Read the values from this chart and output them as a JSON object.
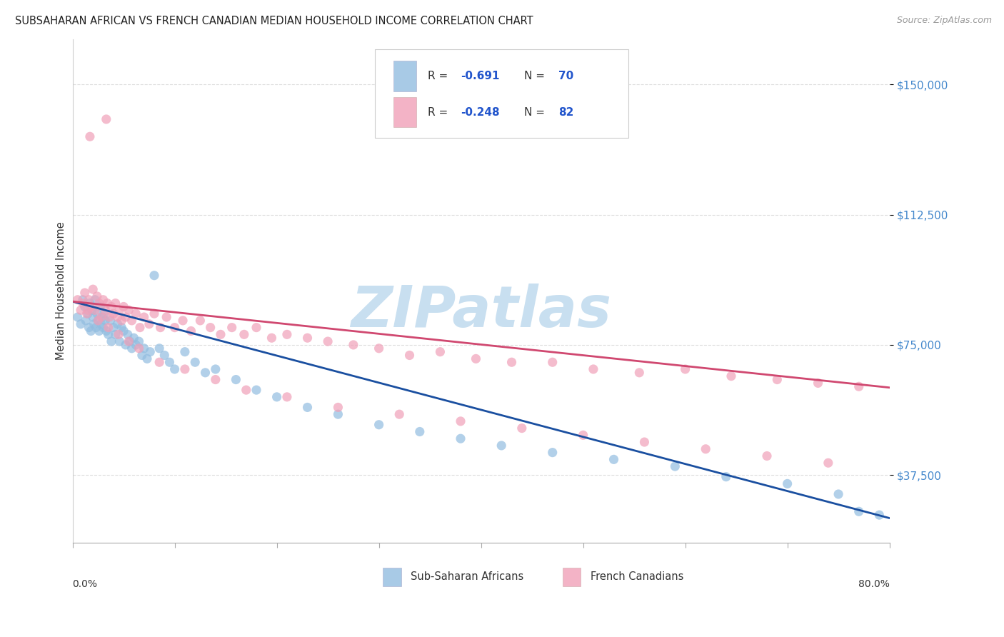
{
  "title": "SUBSAHARAN AFRICAN VS FRENCH CANADIAN MEDIAN HOUSEHOLD INCOME CORRELATION CHART",
  "source": "Source: ZipAtlas.com",
  "ylabel": "Median Household Income",
  "ytick_vals": [
    37500,
    75000,
    112500,
    150000
  ],
  "ytick_labels": [
    "$37,500",
    "$75,000",
    "$112,500",
    "$150,000"
  ],
  "ymin": 18000,
  "ymax": 163000,
  "xmin": 0.0,
  "xmax": 0.8,
  "watermark": "ZIPatlas",
  "watermark_color": "#c8dff0",
  "blue_color": "#92bde0",
  "pink_color": "#f0a0b8",
  "blue_line_color": "#1a4fa0",
  "pink_line_color": "#d04870",
  "background_color": "#ffffff",
  "grid_color": "#dddddd",
  "legend_blue_r": "-0.691",
  "legend_blue_n": "70",
  "legend_pink_r": "-0.248",
  "legend_pink_n": "82",
  "blue_scatter_x": [
    0.005,
    0.008,
    0.01,
    0.012,
    0.013,
    0.015,
    0.016,
    0.017,
    0.018,
    0.019,
    0.02,
    0.021,
    0.022,
    0.023,
    0.024,
    0.025,
    0.026,
    0.027,
    0.028,
    0.029,
    0.03,
    0.031,
    0.032,
    0.033,
    0.035,
    0.037,
    0.038,
    0.04,
    0.042,
    0.044,
    0.046,
    0.048,
    0.05,
    0.052,
    0.054,
    0.056,
    0.058,
    0.06,
    0.062,
    0.065,
    0.068,
    0.07,
    0.073,
    0.076,
    0.08,
    0.085,
    0.09,
    0.095,
    0.1,
    0.11,
    0.12,
    0.13,
    0.14,
    0.16,
    0.18,
    0.2,
    0.23,
    0.26,
    0.3,
    0.34,
    0.38,
    0.42,
    0.47,
    0.53,
    0.59,
    0.64,
    0.7,
    0.75,
    0.77,
    0.79
  ],
  "blue_scatter_y": [
    83000,
    81000,
    88000,
    86000,
    82000,
    84000,
    80000,
    87000,
    79000,
    85000,
    83000,
    81000,
    88000,
    80000,
    84000,
    82000,
    79000,
    86000,
    81000,
    83000,
    80000,
    84000,
    82000,
    79000,
    78000,
    82000,
    76000,
    80000,
    78000,
    81000,
    76000,
    80000,
    79000,
    75000,
    78000,
    76000,
    74000,
    77000,
    75000,
    76000,
    72000,
    74000,
    71000,
    73000,
    95000,
    74000,
    72000,
    70000,
    68000,
    73000,
    70000,
    67000,
    68000,
    65000,
    62000,
    60000,
    57000,
    55000,
    52000,
    50000,
    48000,
    46000,
    44000,
    42000,
    40000,
    37000,
    35000,
    32000,
    27000,
    26000
  ],
  "pink_scatter_x": [
    0.005,
    0.008,
    0.01,
    0.012,
    0.014,
    0.016,
    0.018,
    0.02,
    0.022,
    0.024,
    0.026,
    0.028,
    0.03,
    0.032,
    0.034,
    0.036,
    0.038,
    0.04,
    0.042,
    0.044,
    0.046,
    0.048,
    0.05,
    0.052,
    0.055,
    0.058,
    0.062,
    0.066,
    0.07,
    0.075,
    0.08,
    0.086,
    0.092,
    0.1,
    0.108,
    0.116,
    0.125,
    0.135,
    0.145,
    0.156,
    0.168,
    0.18,
    0.195,
    0.21,
    0.23,
    0.25,
    0.275,
    0.3,
    0.33,
    0.36,
    0.395,
    0.43,
    0.47,
    0.51,
    0.555,
    0.6,
    0.645,
    0.69,
    0.73,
    0.77,
    0.015,
    0.025,
    0.035,
    0.045,
    0.055,
    0.065,
    0.085,
    0.11,
    0.14,
    0.17,
    0.21,
    0.26,
    0.32,
    0.38,
    0.44,
    0.5,
    0.56,
    0.62,
    0.68,
    0.74,
    0.017,
    0.033
  ],
  "pink_scatter_y": [
    88000,
    85000,
    87000,
    90000,
    84000,
    88000,
    86000,
    91000,
    85000,
    89000,
    87000,
    83000,
    88000,
    85000,
    87000,
    83000,
    86000,
    84000,
    87000,
    83000,
    85000,
    82000,
    86000,
    83000,
    85000,
    82000,
    84000,
    80000,
    83000,
    81000,
    84000,
    80000,
    83000,
    80000,
    82000,
    79000,
    82000,
    80000,
    78000,
    80000,
    78000,
    80000,
    77000,
    78000,
    77000,
    76000,
    75000,
    74000,
    72000,
    73000,
    71000,
    70000,
    70000,
    68000,
    67000,
    68000,
    66000,
    65000,
    64000,
    63000,
    85000,
    82000,
    80000,
    78000,
    76000,
    74000,
    70000,
    68000,
    65000,
    62000,
    60000,
    57000,
    55000,
    53000,
    51000,
    49000,
    47000,
    45000,
    43000,
    41000,
    135000,
    140000
  ]
}
